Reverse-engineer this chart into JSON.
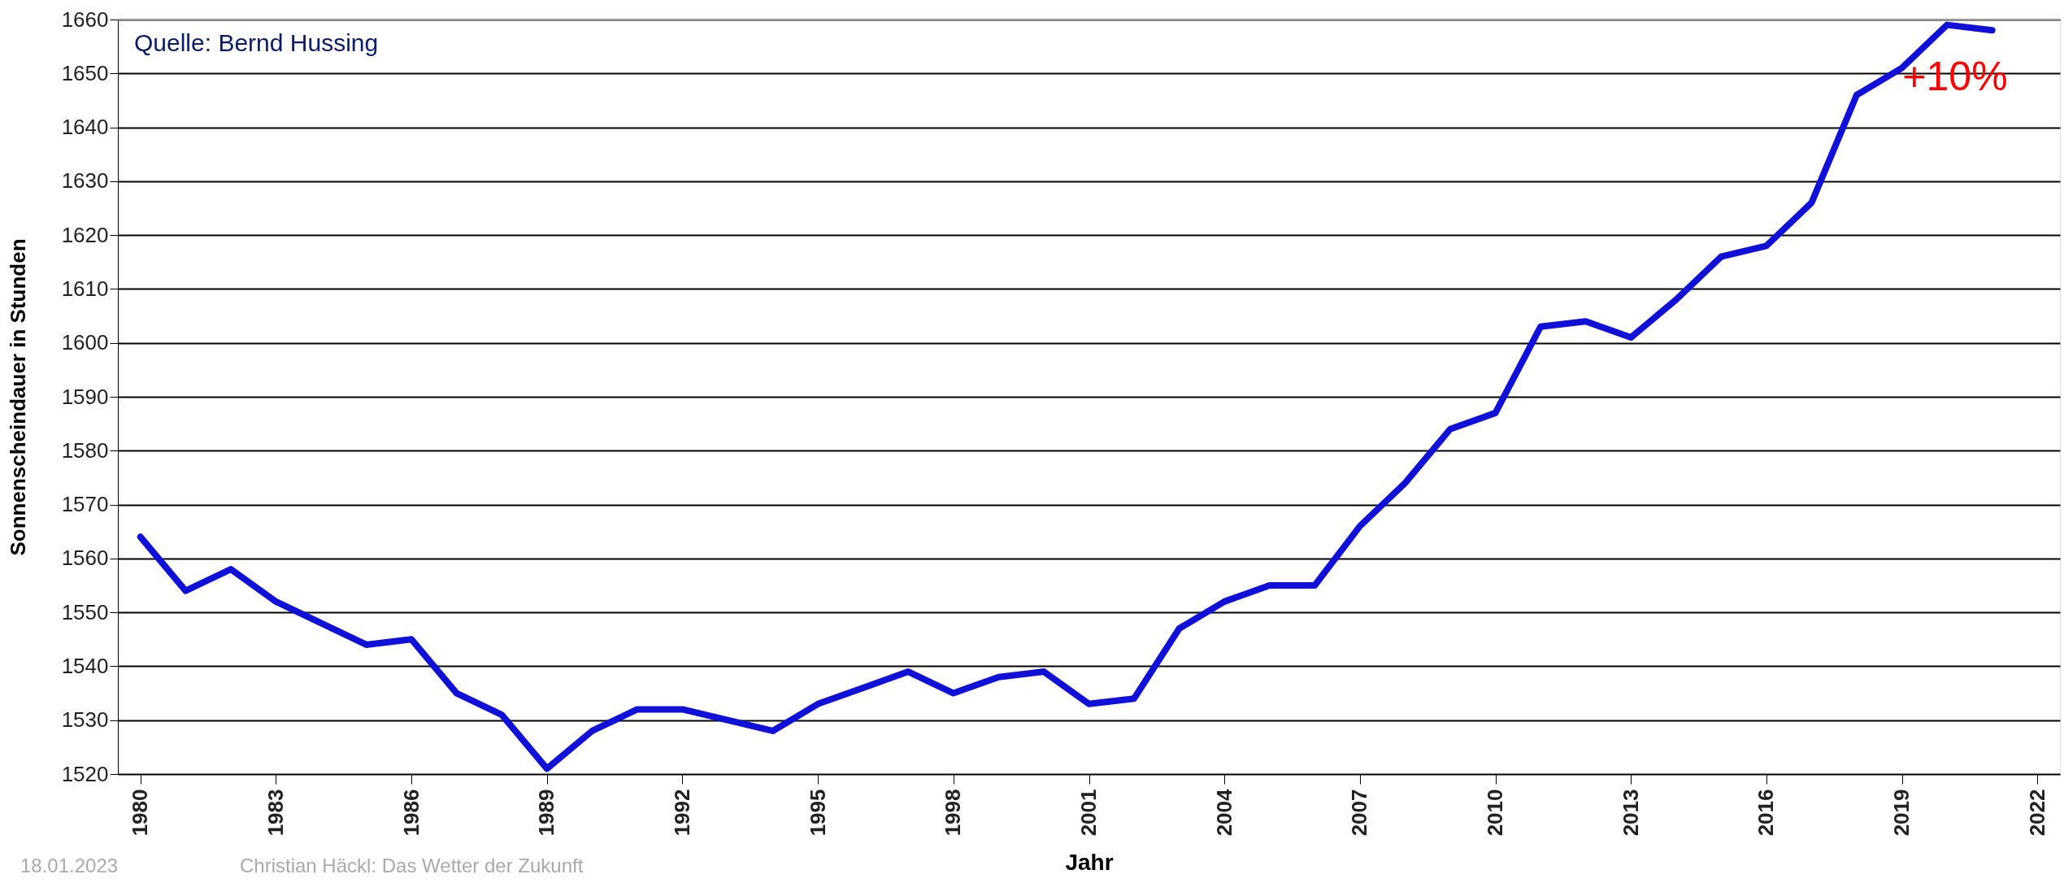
{
  "chart_data": {
    "type": "line",
    "xlabel": "Jahr",
    "ylabel": "Sonnenscheindauer in Stunden",
    "x": [
      1980,
      1981,
      1982,
      1983,
      1984,
      1985,
      1986,
      1987,
      1988,
      1989,
      1990,
      1991,
      1992,
      1993,
      1994,
      1995,
      1996,
      1997,
      1998,
      1999,
      2000,
      2001,
      2002,
      2003,
      2004,
      2005,
      2006,
      2007,
      2008,
      2009,
      2010,
      2011,
      2012,
      2013,
      2014,
      2015,
      2016,
      2017,
      2018,
      2019,
      2020,
      2021
    ],
    "series": [
      {
        "color": "#1010d8",
        "values": [
          1564,
          1554,
          1558,
          1552,
          1548,
          1544,
          1545,
          1535,
          1531,
          1521,
          1528,
          1532,
          1532,
          1530,
          1528,
          1533,
          1536,
          1539,
          1535,
          1538,
          1539,
          1533,
          1534,
          1547,
          1552,
          1555,
          1555,
          1566,
          1574,
          1584,
          1587,
          1603,
          1604,
          1601,
          1608,
          1616,
          1618,
          1626,
          1646,
          1651,
          1659,
          1658
        ]
      }
    ],
    "xlim": [
      1979.5,
      2022.5
    ],
    "xticks": [
      1980,
      1983,
      1986,
      1989,
      1992,
      1995,
      1998,
      2001,
      2004,
      2007,
      2010,
      2013,
      2016,
      2019,
      2022
    ],
    "ylim": [
      1520,
      1660
    ],
    "yticks": [
      1520,
      1530,
      1540,
      1550,
      1560,
      1570,
      1580,
      1590,
      1600,
      1610,
      1620,
      1630,
      1640,
      1650,
      1660
    ],
    "grid": "y",
    "marker": "none",
    "line_style": "solid",
    "annotations": [
      "Quelle: Bernd Hussing",
      "+10%",
      "18.01.2023",
      "Christian Häckl: Das Wetter der Zukunft"
    ]
  }
}
